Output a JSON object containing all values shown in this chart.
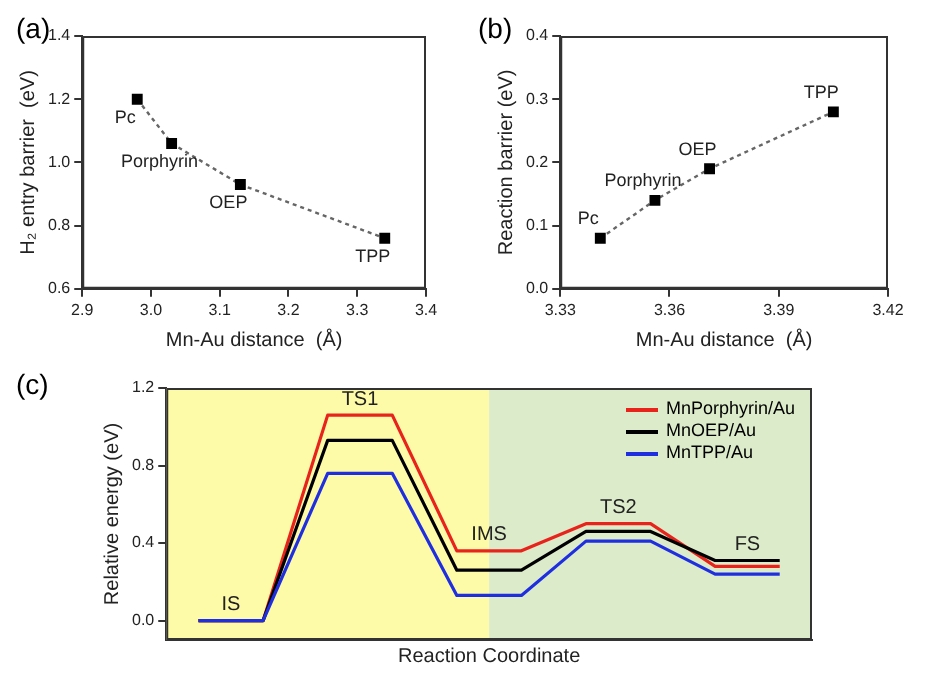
{
  "chart_data": [
    {
      "type": "line",
      "title": "(a)",
      "xlabel": "Mn-Au distance  (Å)",
      "ylabel": "H₂ entry barrier  (eV)",
      "x": [
        2.98,
        3.03,
        3.13,
        3.34
      ],
      "series": [
        {
          "color": "#000000",
          "values": [
            1.2,
            1.06,
            0.93,
            0.76
          ]
        }
      ],
      "xlim": [
        2.9,
        3.4
      ],
      "xticks": [
        {
          "value": 2.9,
          "label": "2.9"
        },
        {
          "value": 3.0,
          "label": "3.0"
        },
        {
          "value": 3.1,
          "label": "3.1"
        },
        {
          "value": 3.2,
          "label": "3.2"
        },
        {
          "value": 3.3,
          "label": "3.3"
        },
        {
          "value": 3.4,
          "label": "3.4"
        }
      ],
      "ylim": [
        0.6,
        1.4
      ],
      "yticks": [
        {
          "value": 0.6,
          "label": "0.6"
        },
        {
          "value": 0.8,
          "label": "0.8"
        },
        {
          "value": 1.0,
          "label": "1.0"
        },
        {
          "value": 1.2,
          "label": "1.2"
        },
        {
          "value": 1.4,
          "label": "1.4"
        }
      ],
      "marker": "square",
      "line_style": "dotted",
      "grid": false,
      "legend": false,
      "annotations": [
        {
          "text": "Pc",
          "x": 2.98,
          "y": 1.2
        },
        {
          "text": "Porphyrin",
          "x": 3.03,
          "y": 1.06
        },
        {
          "text": "OEP",
          "x": 3.13,
          "y": 0.93
        },
        {
          "text": "TPP",
          "x": 3.34,
          "y": 0.76
        }
      ]
    },
    {
      "type": "line",
      "title": "(b)",
      "xlabel": "Mn-Au distance  (Å)",
      "ylabel": "Reaction barrier (eV)",
      "x": [
        3.341,
        3.356,
        3.371,
        3.405
      ],
      "series": [
        {
          "color": "#000000",
          "values": [
            0.08,
            0.14,
            0.19,
            0.28
          ]
        }
      ],
      "xlim": [
        3.33,
        3.42
      ],
      "xticks": [
        3.33,
        3.36,
        3.39,
        3.42
      ],
      "ylim": [
        0,
        0.4
      ],
      "yticks": [
        {
          "value": 0,
          "label": "0.0"
        },
        {
          "value": 0.1,
          "label": "0.1"
        },
        {
          "value": 0.2,
          "label": "0.2"
        },
        {
          "value": 0.3,
          "label": "0.3"
        },
        {
          "value": 0.4,
          "label": "0.4"
        }
      ],
      "marker": "square",
      "line_style": "dotted",
      "grid": false,
      "legend": false,
      "annotations": [
        {
          "text": "Pc",
          "x": 3.341,
          "y": 0.08
        },
        {
          "text": "Porphyrin",
          "x": 3.356,
          "y": 0.14
        },
        {
          "text": "OEP",
          "x": 3.371,
          "y": 0.19
        },
        {
          "text": "TPP",
          "x": 3.405,
          "y": 0.28
        }
      ]
    },
    {
      "type": "line",
      "title": "(c)",
      "xlabel": "Reaction Coordinate",
      "ylabel": "Relative energy (eV)",
      "categories": [
        null,
        null,
        null,
        null,
        null,
        null,
        null,
        null,
        null,
        null
      ],
      "series": [
        {
          "name": "MnPorphyrin/Au",
          "color": "#e8231c",
          "values": [
            0,
            0,
            1.06,
            1.06,
            0.36,
            0.36,
            0.5,
            0.5,
            0.28,
            0.28
          ]
        },
        {
          "name": "MnOEP/Au",
          "color": "#000000",
          "values": [
            0,
            0,
            0.93,
            0.93,
            0.26,
            0.26,
            0.46,
            0.46,
            0.31,
            0.31
          ]
        },
        {
          "name": "MnTPP/Au",
          "color": "#1f2fe0",
          "values": [
            0,
            0,
            0.76,
            0.76,
            0.13,
            0.13,
            0.41,
            0.41,
            0.24,
            0.24
          ]
        }
      ],
      "ylim": [
        -0.1,
        1.2
      ],
      "yticks": [
        {
          "value": 0,
          "label": "0.0"
        },
        {
          "value": 0.4,
          "label": "0.4"
        },
        {
          "value": 0.8,
          "label": "0.8"
        },
        {
          "value": 1.2,
          "label": "1.2"
        }
      ],
      "tick_labels": "y",
      "marker": "none",
      "line_style": "solid",
      "grid": false,
      "legend": "top right",
      "annotations": [
        "IS",
        "TS1",
        "IMS",
        "TS2",
        "FS"
      ]
    }
  ]
}
